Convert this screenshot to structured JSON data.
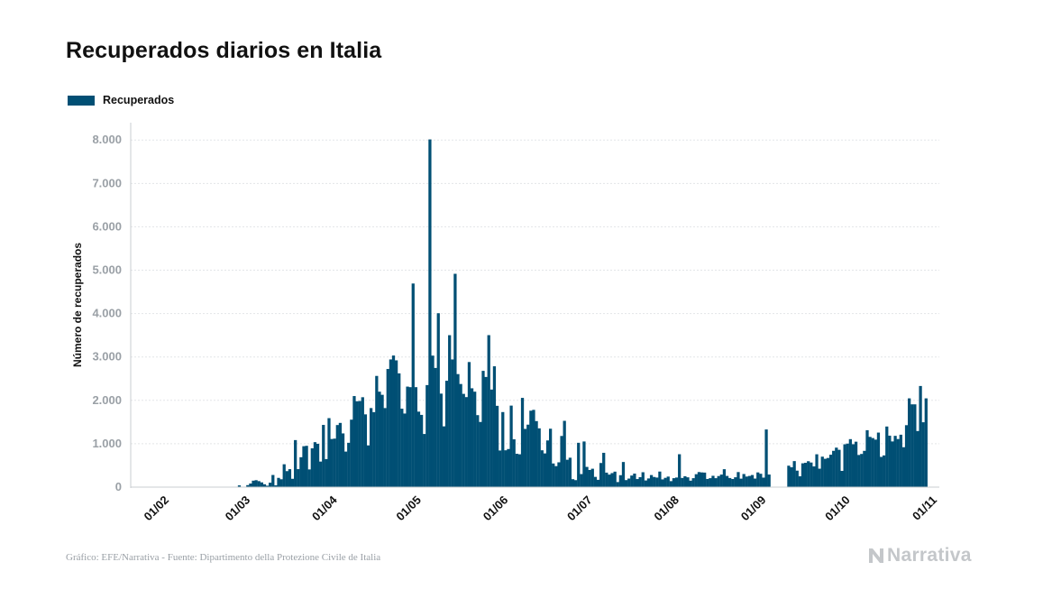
{
  "title": "Recuperados diarios en Italia",
  "legend": {
    "label": "Recuperados",
    "color": "#004f74"
  },
  "source": "Gráfico: EFE/Narrativa - Fuente: Dipartimento della Protezione Civile de Italia",
  "brand": {
    "name": "Narrativa",
    "icon": "narrativa-logo-icon",
    "color": "#c4c7ca"
  },
  "chart_data": {
    "type": "bar",
    "title": "Recuperados diarios en Italia",
    "ylabel": "Número de recuperados",
    "xlabel": "",
    "ylim": [
      0,
      8400
    ],
    "yticks": [
      0,
      1000,
      2000,
      3000,
      4000,
      5000,
      6000,
      7000,
      8000
    ],
    "ytick_labels": [
      "0",
      "1.000",
      "2.000",
      "3.000",
      "4.000",
      "5.000",
      "6.000",
      "7.000",
      "8.000"
    ],
    "xticks": [
      "01/02",
      "01/03",
      "01/04",
      "01/05",
      "01/06",
      "01/07",
      "01/08",
      "01/09",
      "01/10",
      "01/11"
    ],
    "grid": true,
    "legend_position": "top-left",
    "series": [
      {
        "name": "Recuperados",
        "color": "#004f74",
        "start_date": "2020-02-24",
        "values": [
          0,
          0,
          0,
          40,
          0,
          1,
          46,
          83,
          149,
          160,
          138,
          109,
          66,
          33,
          102,
          280,
          41,
          213,
          181,
          527,
          369,
          414,
          192,
          1084,
          415,
          689,
          943,
          952,
          408,
          894,
          1036,
          999,
          589,
          1434,
          646,
          1590,
          1109,
          1118,
          1431,
          1480,
          1238,
          819,
          1022,
          1555,
          2099,
          1979,
          1985,
          2072,
          1677,
          962,
          1822,
          1728,
          2563,
          2200,
          2128,
          1822,
          2723,
          2943,
          3033,
          2922,
          2622,
          1808,
          1696,
          2317,
          2304,
          4693,
          2304,
          1740,
          1665,
          1225,
          2352,
          8014,
          3031,
          2747,
          4008,
          2155,
          1401,
          2452,
          3502,
          2943,
          4917,
          2605,
          2377,
          2150,
          2075,
          2883,
          2278,
          2200,
          1659,
          1502,
          2680,
          2539,
          3503,
          2249,
          2785,
          1874,
          844,
          1730,
          849,
          878,
          1879,
          1102,
          769,
          757,
          2057,
          1342,
          1440,
          1762,
          1781,
          1522,
          1355,
          849,
          777,
          1076,
          1346,
          545,
          484,
          572,
          1179,
          1528,
          631,
          678,
          183,
          161,
          1022,
          301,
          1052,
          466,
          395,
          424,
          236,
          169,
          556,
          791,
          334,
          289,
          323,
          357,
          117,
          275,
          579,
          162,
          197,
          267,
          312,
          186,
          230,
          343,
          154,
          200,
          278,
          234,
          220,
          359,
          178,
          214,
          243,
          138,
          206,
          221,
          758,
          211,
          251,
          226,
          149,
          206,
          298,
          347,
          339,
          335,
          188,
          206,
          261,
          206,
          255,
          289,
          413,
          258,
          210,
          187,
          227,
          347,
          195,
          302,
          244,
          258,
          279,
          197,
          339,
          308,
          219,
          1329,
          290,
          0,
          0,
          0,
          0,
          0,
          0,
          494,
          457,
          600,
          380,
          250,
          549,
          561,
          597,
          567,
          477,
          757,
          425,
          702,
          653,
          672,
          747,
          837,
          910,
          860,
          374,
          987,
          1003,
          1106,
          989,
          1047,
          741,
          765,
          836,
          1312,
          1158,
          1131,
          1095,
          1257,
          697,
          731,
          1397,
          1186,
          1053,
          1182,
          1108,
          1208,
          920,
          1428,
          2046,
          1908,
          1908,
          1293,
          2331,
          1495,
          2046
        ]
      }
    ]
  }
}
